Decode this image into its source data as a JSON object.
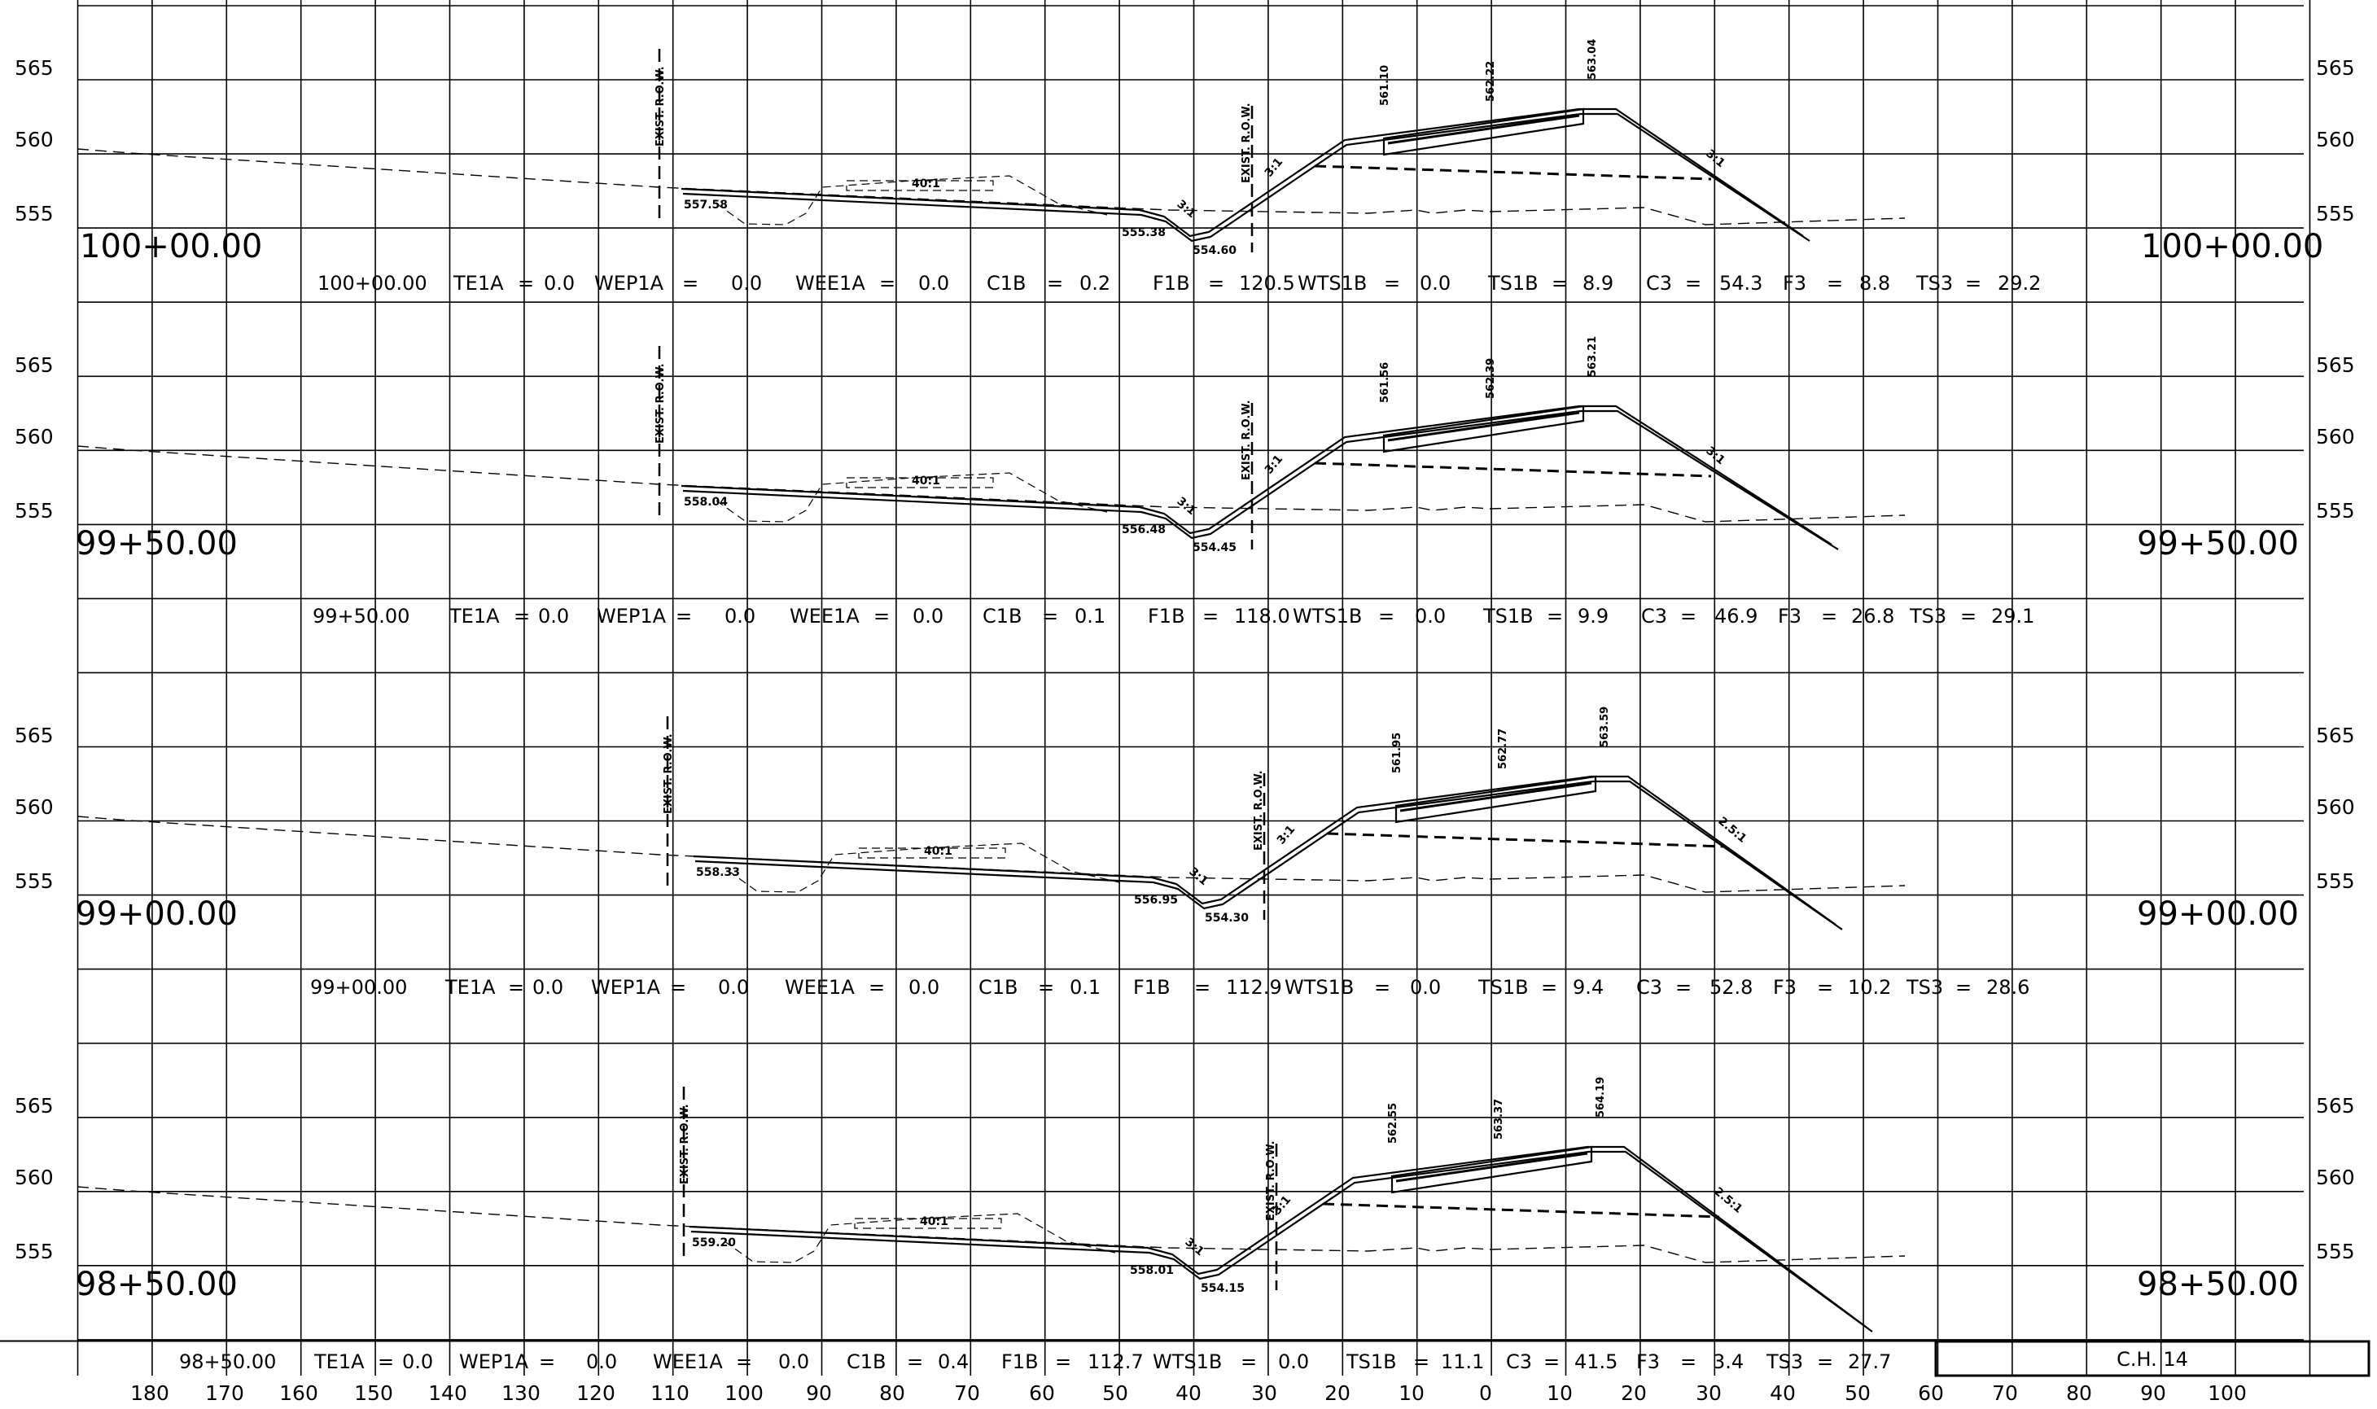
{
  "sheet_label": "C.H. 14",
  "row_label": "EXIST. R.O.W.",
  "elevation_ticks": [
    "565",
    "560",
    "555"
  ],
  "offset_labels": [
    "180",
    "170",
    "160",
    "150",
    "140",
    "130",
    "120",
    "110",
    "100",
    "90",
    "80",
    "70",
    "60",
    "50",
    "40",
    "30",
    "20",
    "10",
    "0",
    "10",
    "20",
    "30",
    "40",
    "50",
    "60",
    "70",
    "80",
    "90",
    "100"
  ],
  "sections": [
    {
      "station": "100+00.00",
      "summary": [
        [
          "100+00.00",
          390
        ],
        [
          "TE1A",
          557
        ],
        [
          "=",
          636
        ],
        [
          "0.0",
          668
        ],
        [
          "WEP1A",
          730
        ],
        [
          "=",
          838
        ],
        [
          "0.0",
          898
        ],
        [
          "WEE1A",
          977
        ],
        [
          "=",
          1080
        ],
        [
          "0.0",
          1128
        ],
        [
          "C1B",
          1212
        ],
        [
          "=",
          1286
        ],
        [
          "0.2",
          1326
        ],
        [
          "F1B",
          1416
        ],
        [
          "=",
          1484
        ],
        [
          "120.5",
          1522
        ],
        [
          "WTS1B",
          1594
        ],
        [
          "=",
          1700
        ],
        [
          "0.0",
          1744
        ],
        [
          "TS1B",
          1828
        ],
        [
          "=",
          1906
        ],
        [
          "8.9",
          1944
        ],
        [
          "C3",
          2022
        ],
        [
          "=",
          2070
        ],
        [
          "54.3",
          2112
        ],
        [
          "F3",
          2190
        ],
        [
          "=",
          2244
        ],
        [
          "8.8",
          2284
        ],
        [
          "TS3",
          2354
        ],
        [
          "=",
          2414
        ],
        [
          "29.2",
          2454
        ]
      ],
      "annotations": {
        "left_elev": "557.58",
        "toe_elev": "555.38",
        "ditch_elev": "554.60",
        "shoulder_elev": "561.10",
        "edge_elev": "562.22",
        "crown_elev": "563.04",
        "slope_flat": "40:1",
        "slope_ditch": "3:1",
        "slope_back": "3:1",
        "slope_fill": "3:1"
      }
    },
    {
      "station": "99+50.00",
      "summary": [
        [
          "99+50.00",
          384
        ],
        [
          "TE1A",
          552
        ],
        [
          "=",
          631
        ],
        [
          "0.0",
          661
        ],
        [
          "WEP1A",
          733
        ],
        [
          "=",
          830
        ],
        [
          "0.0",
          890
        ],
        [
          "WEE1A",
          970
        ],
        [
          "=",
          1073
        ],
        [
          "0.0",
          1121
        ],
        [
          "C1B",
          1207
        ],
        [
          "=",
          1280
        ],
        [
          "0.1",
          1320
        ],
        [
          "F1B",
          1410
        ],
        [
          "=",
          1477
        ],
        [
          "118.0",
          1516
        ],
        [
          "WTS1B",
          1588
        ],
        [
          "=",
          1693
        ],
        [
          "0.0",
          1738
        ],
        [
          "TS1B",
          1822
        ],
        [
          "=",
          1900
        ],
        [
          "9.9",
          1938
        ],
        [
          "C3",
          2016
        ],
        [
          "=",
          2064
        ],
        [
          "46.9",
          2106
        ],
        [
          "F3",
          2184
        ],
        [
          "=",
          2237
        ],
        [
          "26.8",
          2274
        ],
        [
          "TS3",
          2346
        ],
        [
          "=",
          2408
        ],
        [
          "29.1",
          2446
        ]
      ],
      "annotations": {
        "left_elev": "558.04",
        "toe_elev": "556.48",
        "ditch_elev": "554.45",
        "shoulder_elev": "561.56",
        "edge_elev": "562.39",
        "crown_elev": "563.21",
        "slope_flat": "40:1",
        "slope_ditch": "3:1",
        "slope_back": "3:1",
        "slope_fill": "3:1"
      }
    },
    {
      "station": "99+00.00",
      "summary": [
        [
          "99+00.00",
          381
        ],
        [
          "TE1A",
          547
        ],
        [
          "=",
          624
        ],
        [
          "0.0",
          654
        ],
        [
          "WEP1A",
          726
        ],
        [
          "=",
          823
        ],
        [
          "0.0",
          882
        ],
        [
          "WEE1A",
          964
        ],
        [
          "=",
          1067
        ],
        [
          "0.0",
          1116
        ],
        [
          "C1B",
          1202
        ],
        [
          "=",
          1275
        ],
        [
          "0.1",
          1314
        ],
        [
          "F1B",
          1392
        ],
        [
          "=",
          1467
        ],
        [
          "112.9",
          1506
        ],
        [
          "WTS1B",
          1578
        ],
        [
          "=",
          1688
        ],
        [
          "0.0",
          1732
        ],
        [
          "TS1B",
          1816
        ],
        [
          "=",
          1893
        ],
        [
          "9.4",
          1932
        ],
        [
          "C3",
          2010
        ],
        [
          "=",
          2058
        ],
        [
          "52.8",
          2100
        ],
        [
          "F3",
          2178
        ],
        [
          "=",
          2232
        ],
        [
          "10.2",
          2270
        ],
        [
          "TS3",
          2342
        ],
        [
          "=",
          2402
        ],
        [
          "28.6",
          2440
        ]
      ],
      "annotations": {
        "left_elev": "558.33",
        "toe_elev": "556.95",
        "ditch_elev": "554.30",
        "shoulder_elev": "561.95",
        "edge_elev": "562.77",
        "crown_elev": "563.59",
        "slope_flat": "40:1",
        "slope_ditch": "3:1",
        "slope_back": "3:1",
        "slope_fill": "2.5:1"
      }
    },
    {
      "station": "98+50.00",
      "summary": [
        [
          "98+50.00",
          220
        ],
        [
          "TE1A",
          386
        ],
        [
          "=",
          464
        ],
        [
          "0.0",
          494
        ],
        [
          "WEP1A",
          564
        ],
        [
          "=",
          662
        ],
        [
          "0.0",
          720
        ],
        [
          "WEE1A",
          802
        ],
        [
          "=",
          904
        ],
        [
          "0.0",
          956
        ],
        [
          "C1B",
          1040
        ],
        [
          "=",
          1114
        ],
        [
          "0.4",
          1152
        ],
        [
          "F1B",
          1230
        ],
        [
          "=",
          1296
        ],
        [
          "112.7",
          1336
        ],
        [
          "WTS1B",
          1416
        ],
        [
          "=",
          1524
        ],
        [
          "0.0",
          1570
        ],
        [
          "TS1B",
          1654
        ],
        [
          "=",
          1736
        ],
        [
          "11.1",
          1770
        ],
        [
          "C3",
          1850
        ],
        [
          "=",
          1896
        ],
        [
          "41.5",
          1934
        ],
        [
          "F3",
          2010
        ],
        [
          "=",
          2064
        ],
        [
          "3.4",
          2104
        ],
        [
          "TS3",
          2170
        ],
        [
          "=",
          2232
        ],
        [
          "27.7",
          2270
        ]
      ],
      "annotations": {
        "left_elev": "559.20",
        "toe_elev": "558.01",
        "ditch_elev": "554.15",
        "shoulder_elev": "562.55",
        "edge_elev": "563.37",
        "crown_elev": "564.19",
        "slope_flat": "40:1",
        "slope_ditch": "3:1",
        "slope_back": "3:1",
        "slope_fill": "2.5:1"
      }
    }
  ]
}
